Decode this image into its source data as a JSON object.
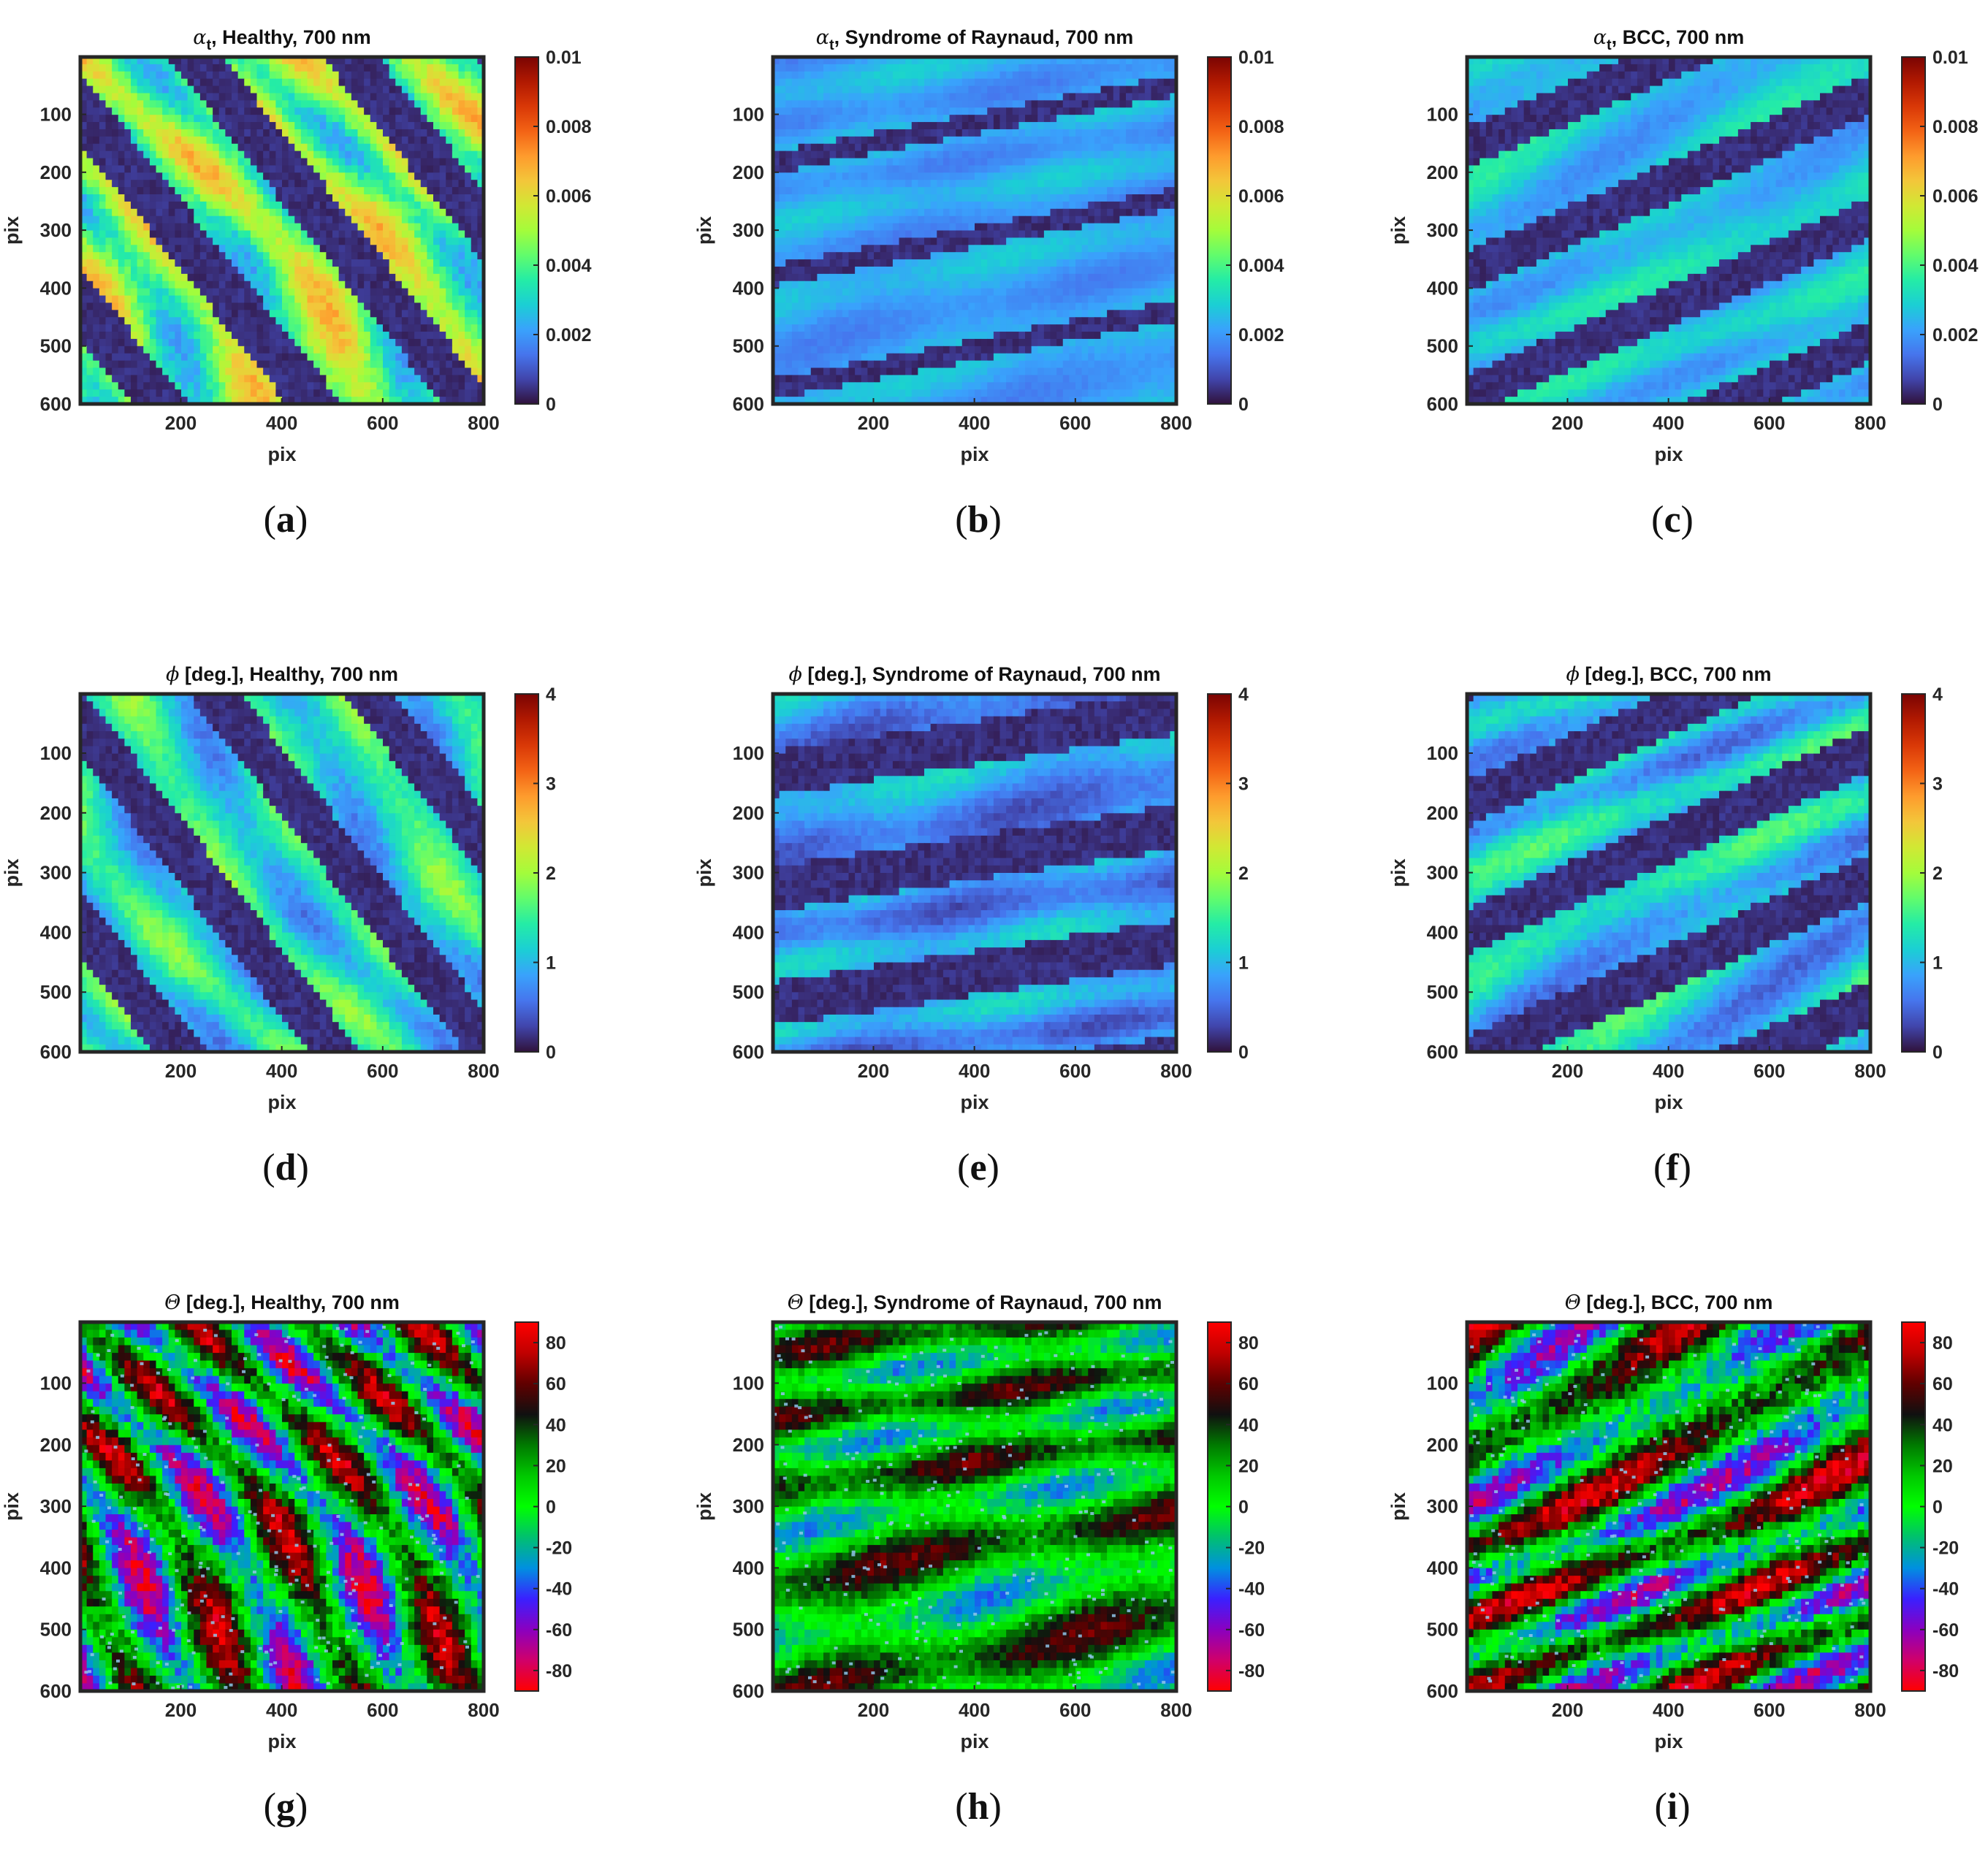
{
  "colorbars": {
    "alpha": {
      "range": [
        0,
        0.01
      ],
      "ticks": [
        0,
        0.002,
        0.004,
        0.006,
        0.008,
        0.01
      ],
      "tick_labels": [
        "0",
        "0.002",
        "0.004",
        "0.006",
        "0.008",
        "0.01"
      ],
      "colormap": "jet",
      "colors": [
        "#30123b",
        "#4145ab",
        "#4675ed",
        "#39a2fc",
        "#1bcfd4",
        "#24eca6",
        "#61fc6c",
        "#a4fc3b",
        "#d1e834",
        "#f3c63a",
        "#fe9b2d",
        "#f36315",
        "#d93807",
        "#b11901",
        "#7a0403"
      ]
    },
    "phi": {
      "range": [
        0,
        4
      ],
      "ticks": [
        0,
        1,
        2,
        3,
        4
      ],
      "tick_labels": [
        "0",
        "1",
        "2",
        "3",
        "4"
      ],
      "colormap": "jet",
      "colors": [
        "#30123b",
        "#4145ab",
        "#4675ed",
        "#39a2fc",
        "#1bcfd4",
        "#24eca6",
        "#61fc6c",
        "#a4fc3b",
        "#d1e834",
        "#f3c63a",
        "#fe9b2d",
        "#f36315",
        "#d93807",
        "#b11901",
        "#7a0403"
      ]
    },
    "theta": {
      "range": [
        -90,
        90
      ],
      "ticks": [
        -80,
        -60,
        -40,
        -20,
        0,
        20,
        40,
        60,
        80
      ],
      "tick_labels": [
        "-80",
        "-60",
        "-40",
        "-20",
        "0",
        "20",
        "40",
        "60",
        "80"
      ],
      "colormap": "red-blue-green-black-red",
      "colors": [
        "#ff0000",
        "#d0006a",
        "#8a00c0",
        "#3a20ff",
        "#0090e0",
        "#00c070",
        "#00ff00",
        "#00c800",
        "#007a00",
        "#101010",
        "#600000",
        "#c00000",
        "#ff0000"
      ]
    }
  },
  "chart_data": [
    {
      "type": "heatmap",
      "title_symbol": "α",
      "title_sub": "t",
      "title": ", Healthy, 700 nm",
      "xlabel": "pix",
      "ylabel": "pix",
      "xlim": [
        1,
        800
      ],
      "ylim": [
        1,
        600
      ],
      "xticks": [
        200,
        400,
        600,
        800
      ],
      "yticks": [
        100,
        200,
        300,
        400,
        500,
        600
      ],
      "colorbar": "alpha",
      "mean_level": 0.45,
      "spread": 0.55,
      "stripe_angle": -0.6,
      "dark_fraction": 0.18,
      "caption": "(a)"
    },
    {
      "type": "heatmap",
      "title_symbol": "α",
      "title_sub": "t",
      "title": ", Syndrome of Raynaud, 700 nm",
      "xlabel": "pix",
      "ylabel": "pix",
      "xlim": [
        1,
        800
      ],
      "ylim": [
        1,
        600
      ],
      "xticks": [
        200,
        400,
        600,
        800
      ],
      "yticks": [
        100,
        200,
        300,
        400,
        500,
        600
      ],
      "colorbar": "alpha",
      "mean_level": 0.22,
      "spread": 0.16,
      "stripe_angle": 1.35,
      "dark_fraction": 0.05,
      "caption": "(b)"
    },
    {
      "type": "heatmap",
      "title_symbol": "α",
      "title_sub": "t",
      "title": ", BCC, 700 nm",
      "xlabel": "pix",
      "ylabel": "pix",
      "xlim": [
        1,
        800
      ],
      "ylim": [
        1,
        600
      ],
      "xticks": [
        200,
        400,
        600,
        800
      ],
      "yticks": [
        100,
        200,
        300,
        400,
        500,
        600
      ],
      "colorbar": "alpha",
      "mean_level": 0.27,
      "spread": 0.22,
      "stripe_angle": 1.1,
      "dark_fraction": 0.16,
      "caption": "(c)"
    },
    {
      "type": "heatmap",
      "title_symbol": "ϕ",
      "title_sub": "",
      "title": " [deg.], Healthy, 700 nm",
      "xlabel": "pix",
      "ylabel": "pix",
      "xlim": [
        1,
        800
      ],
      "ylim": [
        1,
        600
      ],
      "xticks": [
        200,
        400,
        600,
        800
      ],
      "yticks": [
        100,
        200,
        300,
        400,
        500,
        600
      ],
      "colorbar": "phi",
      "mean_level": 0.32,
      "spread": 0.4,
      "stripe_angle": -0.6,
      "dark_fraction": 0.16,
      "caption": "(d)"
    },
    {
      "type": "heatmap",
      "title_symbol": "ϕ",
      "title_sub": "",
      "title": " [deg.], Syndrome of Raynaud, 700 nm",
      "xlabel": "pix",
      "ylabel": "pix",
      "xlim": [
        1,
        800
      ],
      "ylim": [
        1,
        600
      ],
      "xticks": [
        200,
        400,
        600,
        800
      ],
      "yticks": [
        100,
        200,
        300,
        400,
        500,
        600
      ],
      "colorbar": "phi",
      "mean_level": 0.2,
      "spread": 0.28,
      "stripe_angle": 1.4,
      "dark_fraction": 0.2,
      "caption": "(e)"
    },
    {
      "type": "heatmap",
      "title_symbol": "ϕ",
      "title_sub": "",
      "title": " [deg.], BCC, 700 nm",
      "xlabel": "pix",
      "ylabel": "pix",
      "xlim": [
        1,
        800
      ],
      "ylim": [
        1,
        600
      ],
      "xticks": [
        200,
        400,
        600,
        800
      ],
      "yticks": [
        100,
        200,
        300,
        400,
        500,
        600
      ],
      "colorbar": "phi",
      "mean_level": 0.27,
      "spread": 0.35,
      "stripe_angle": 1.1,
      "dark_fraction": 0.18,
      "caption": "(f)"
    },
    {
      "type": "heatmap",
      "title_symbol": "Θ",
      "title_sub": "",
      "title": " [deg.], Healthy, 700 nm",
      "xlabel": "pix",
      "ylabel": "pix",
      "xlim": [
        1,
        800
      ],
      "ylim": [
        1,
        600
      ],
      "xticks": [
        200,
        400,
        600,
        800
      ],
      "yticks": [
        100,
        200,
        300,
        400,
        500,
        600
      ],
      "colorbar": "theta",
      "mean_level": 0.5,
      "spread": 0.9,
      "stripe_angle": -0.6,
      "dark_fraction": 0.0,
      "caption": "(g)"
    },
    {
      "type": "heatmap",
      "title_symbol": "Θ",
      "title_sub": "",
      "title": " [deg.], Syndrome of Raynaud, 700 nm",
      "xlabel": "pix",
      "ylabel": "pix",
      "xlim": [
        1,
        800
      ],
      "ylim": [
        1,
        600
      ],
      "xticks": [
        200,
        400,
        600,
        800
      ],
      "yticks": [
        100,
        200,
        300,
        400,
        500,
        600
      ],
      "colorbar": "theta",
      "mean_level": 0.58,
      "spread": 0.5,
      "stripe_angle": 1.4,
      "dark_fraction": 0.0,
      "caption": "(h)"
    },
    {
      "type": "heatmap",
      "title_symbol": "Θ",
      "title_sub": "",
      "title": " [deg.], BCC, 700 nm",
      "xlabel": "pix",
      "ylabel": "pix",
      "xlim": [
        1,
        800
      ],
      "ylim": [
        1,
        600
      ],
      "xticks": [
        200,
        400,
        600,
        800
      ],
      "yticks": [
        100,
        200,
        300,
        400,
        500,
        600
      ],
      "colorbar": "theta",
      "mean_level": 0.55,
      "spread": 0.85,
      "stripe_angle": 1.1,
      "dark_fraction": 0.0,
      "caption": "(i)"
    }
  ]
}
